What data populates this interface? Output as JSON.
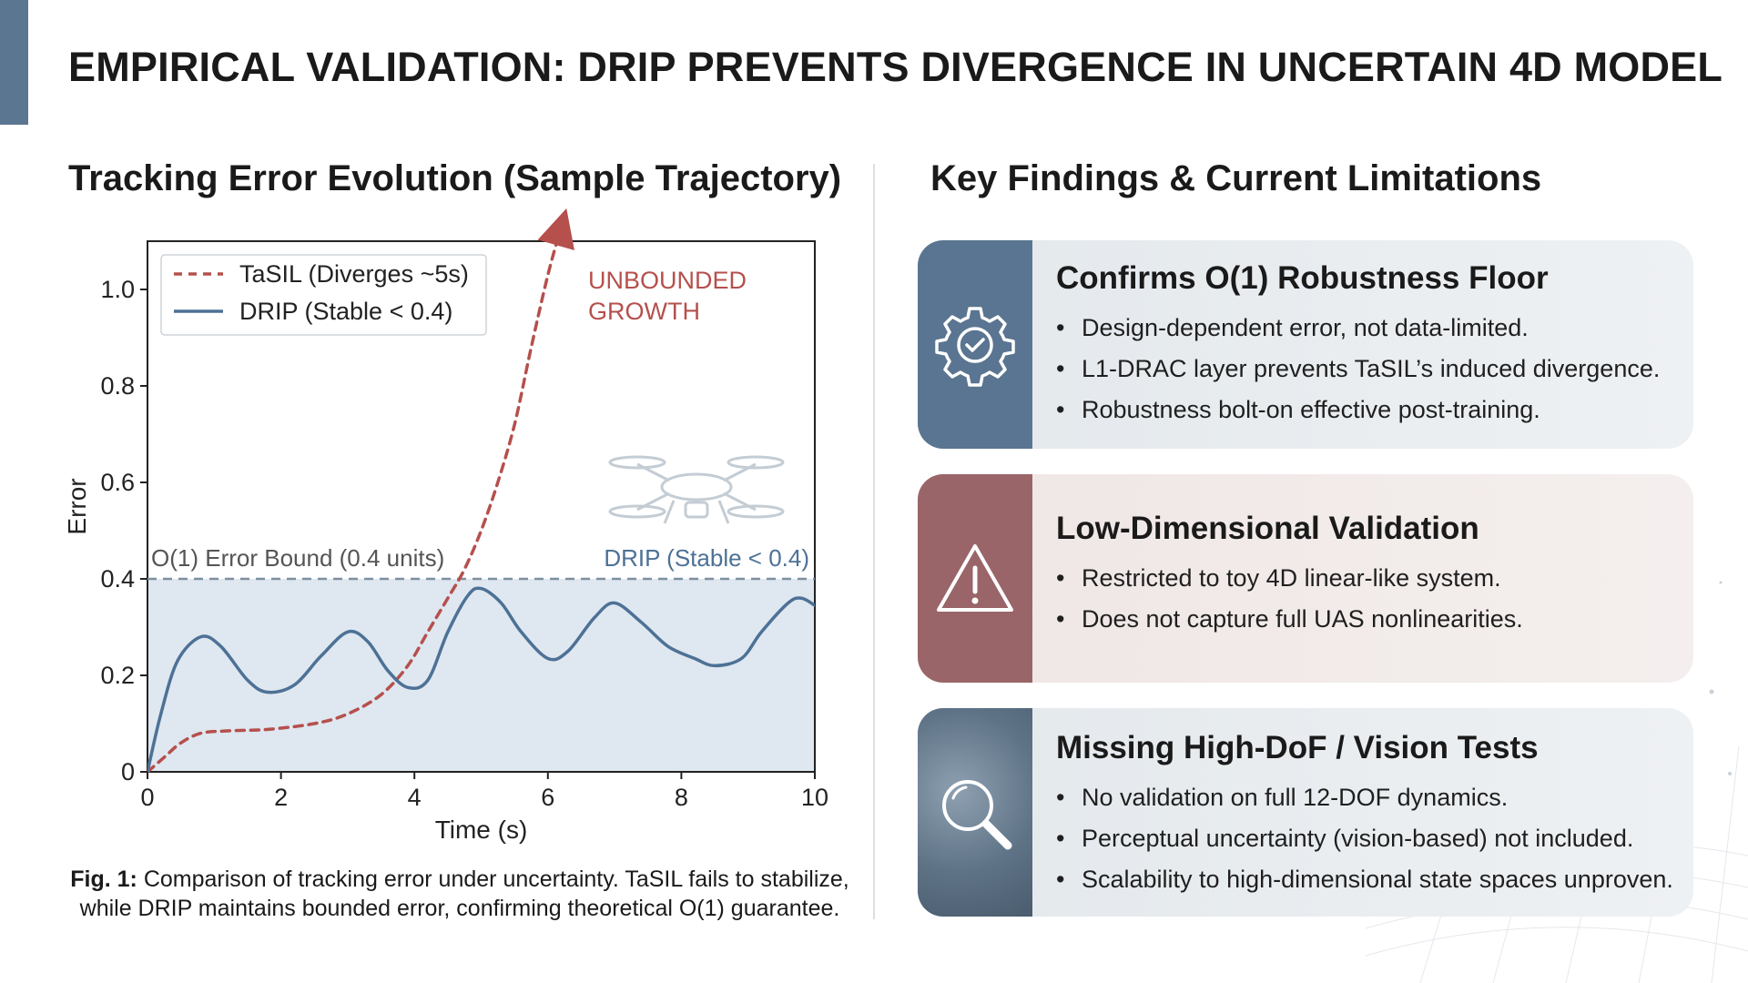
{
  "slide": {
    "title": "EMPIRICAL VALIDATION: DRIP PREVENTS DIVERGENCE IN UNCERTAIN 4D MODEL",
    "accent_color": "#5b7690"
  },
  "left": {
    "title": "Tracking Error Evolution (Sample Trajectory)",
    "caption_label": "Fig. 1:",
    "caption_text": "Comparison of tracking error under uncertainty. TaSIL fails to stabilize, while DRIP maintains bounded error, confirming theoretical O(1) guarantee."
  },
  "chart_data": {
    "type": "line",
    "title": "Tracking Error Evolution (Sample Trajectory)",
    "xlabel": "Time (s)",
    "ylabel": "Error",
    "xlim": [
      0,
      10
    ],
    "ylim": [
      0,
      1.1
    ],
    "xticks": [
      0,
      2,
      4,
      6,
      8,
      10
    ],
    "xtick_labels": [
      "0",
      "2",
      "4",
      "6",
      "8",
      "10"
    ],
    "yticks": [
      0,
      0.2,
      0.4,
      0.6,
      0.8,
      1.0
    ],
    "ytick_labels": [
      "0",
      "0.2",
      "0.4",
      "0.6",
      "0.8",
      "1.0"
    ],
    "grid": false,
    "legend_position": "top-left",
    "series": [
      {
        "name": "TaSIL (Diverges ~5s)",
        "style": "dashed",
        "color": "#b5504d",
        "x": [
          0,
          0.25,
          0.5,
          0.8,
          1.2,
          1.8,
          2.5,
          3.0,
          3.5,
          3.9,
          4.2,
          4.5,
          4.75,
          5.0,
          5.25,
          5.5,
          5.75,
          6.0,
          6.2
        ],
        "y": [
          0.0,
          0.03,
          0.06,
          0.08,
          0.085,
          0.088,
          0.1,
          0.12,
          0.16,
          0.22,
          0.29,
          0.36,
          0.42,
          0.5,
          0.6,
          0.72,
          0.88,
          1.03,
          1.13
        ]
      },
      {
        "name": "DRIP (Stable < 0.4)",
        "style": "solid",
        "color": "#4d7196",
        "x": [
          0,
          0.2,
          0.45,
          0.8,
          1.1,
          1.5,
          1.8,
          2.2,
          2.6,
          3.0,
          3.3,
          3.6,
          3.9,
          4.2,
          4.5,
          4.8,
          5.0,
          5.3,
          5.6,
          6.0,
          6.3,
          6.7,
          7.0,
          7.4,
          7.8,
          8.2,
          8.5,
          8.9,
          9.2,
          9.6,
          9.8,
          10.0
        ],
        "y": [
          0.0,
          0.12,
          0.23,
          0.28,
          0.26,
          0.19,
          0.165,
          0.18,
          0.24,
          0.29,
          0.27,
          0.21,
          0.175,
          0.19,
          0.29,
          0.365,
          0.38,
          0.35,
          0.29,
          0.235,
          0.25,
          0.32,
          0.35,
          0.31,
          0.26,
          0.235,
          0.22,
          0.235,
          0.29,
          0.35,
          0.36,
          0.345
        ]
      }
    ],
    "reference_line": {
      "y": 0.4,
      "label_left": "O(1) Error Bound (0.4 units)",
      "label_right": "DRIP (Stable < 0.4)"
    },
    "annotation": {
      "line1": "UNBOUNDED",
      "line2": "GROWTH",
      "color": "#b5504d"
    },
    "fill_color": "#dfe7f0",
    "drone_icon": "drone-icon"
  },
  "right": {
    "title": "Key Findings & Current Limitations",
    "cards": [
      {
        "icon": "gear-check-icon",
        "title": "Confirms O(1) Robustness Floor",
        "bullets": [
          "Design-dependent error, not data-limited.",
          "L1-DRAC layer prevents TaSIL’s induced divergence.",
          "Robustness bolt-on effective post-training."
        ]
      },
      {
        "icon": "warning-icon",
        "title": "Low-Dimensional Validation",
        "bullets": [
          "Restricted to toy 4D linear-like system.",
          "Does not capture full UAS nonlinearities."
        ]
      },
      {
        "icon": "magnifier-icon",
        "title": "Missing High-DoF / Vision Tests",
        "bullets": [
          "No validation on full 12-DOF dynamics.",
          "Perceptual uncertainty (vision-based) not included.",
          "Scalability to high-dimensional state spaces unproven."
        ]
      }
    ],
    "bullet_char": "•"
  }
}
